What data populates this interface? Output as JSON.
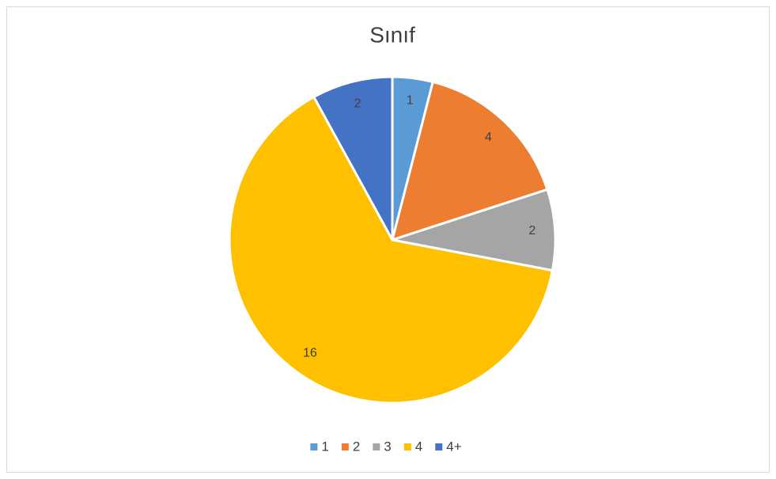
{
  "chart_data": {
    "type": "pie",
    "title": "Sınıf",
    "categories": [
      "1",
      "2",
      "3",
      "4",
      "4+"
    ],
    "values": [
      1,
      4,
      2,
      16,
      2
    ],
    "colors": [
      "#5b9bd5",
      "#ed7d31",
      "#a5a5a5",
      "#ffc000",
      "#4472c4"
    ],
    "legend": "bottom"
  }
}
